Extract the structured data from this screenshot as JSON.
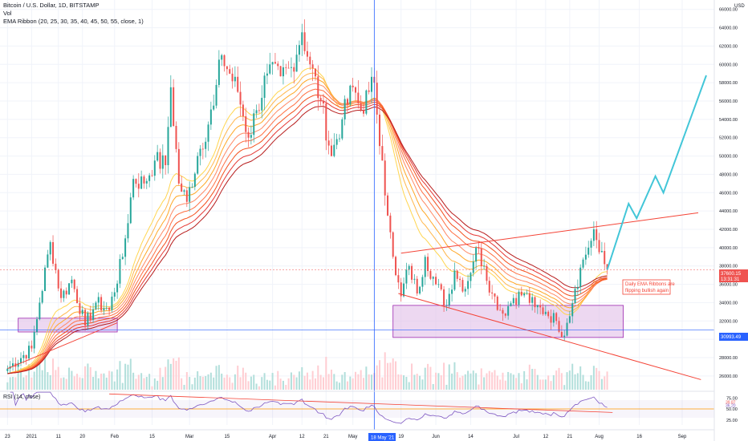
{
  "header": {
    "symbol_line": "Bitcoin / U.S. Dollar, 1D, BITSTAMP",
    "volume_label": "Vol",
    "ema_label": "EMA Ribbon (20, 25, 30, 35, 40, 45, 50, 55, close, 1)",
    "currency": "USD"
  },
  "rsi": {
    "label": "RSI (14, close)",
    "ticks": [
      "75.00",
      "50.00",
      "25.00"
    ],
    "badges": [
      "39.87",
      "36.20"
    ]
  },
  "colors": {
    "up": "#26a69a",
    "down": "#ef5350",
    "projection": "#42c6d8",
    "trendline": "#f44336",
    "zone_fill": "#e1bee7",
    "zone_stroke": "#9c27b0",
    "rsi_line": "#7e57c2",
    "crosshair": "#2962ff"
  },
  "annotations": {
    "ribbon_note_line1": "Daily EMA Ribbons are",
    "ribbon_note_line2": "flipping bullish again",
    "price_badge_top": "37600.15",
    "price_badge_sub": "13:31:31",
    "price_badge_low": "30993.49",
    "crosshair_date": "18 May '21"
  },
  "chart_data": {
    "type": "candlestick",
    "title": "Bitcoin / U.S. Dollar, 1D, BITSTAMP",
    "ylabel": "USD",
    "ylim": [
      24500,
      66500
    ],
    "y_ticks": [
      26000,
      28000,
      30000,
      32000,
      34000,
      36000,
      38000,
      40000,
      42000,
      44000,
      46000,
      48000,
      50000,
      52000,
      54000,
      56000,
      58000,
      60000,
      62000,
      64000,
      66000
    ],
    "x_ticks": [
      {
        "label": "23",
        "day": 0
      },
      {
        "label": "2021",
        "day": 9
      },
      {
        "label": "11",
        "day": 19
      },
      {
        "label": "20",
        "day": 28
      },
      {
        "label": "Feb",
        "day": 40
      },
      {
        "label": "15",
        "day": 54
      },
      {
        "label": "Mar",
        "day": 68
      },
      {
        "label": "15",
        "day": 82
      },
      {
        "label": "Apr",
        "day": 99
      },
      {
        "label": "12",
        "day": 110
      },
      {
        "label": "21",
        "day": 119
      },
      {
        "label": "May",
        "day": 129
      },
      {
        "label": "19",
        "day": 147
      },
      {
        "label": "Jun",
        "day": 160
      },
      {
        "label": "14",
        "day": 173
      },
      {
        "label": "Jul",
        "day": 190
      },
      {
        "label": "12",
        "day": 201
      },
      {
        "label": "21",
        "day": 210
      },
      {
        "label": "Aug",
        "day": 221
      },
      {
        "label": "16",
        "day": 236
      },
      {
        "label": "Sep",
        "day": 252
      }
    ],
    "xlim": [
      0,
      262
    ],
    "last_price": 37600.15,
    "key_points": [
      {
        "day": 0,
        "close": 26800
      },
      {
        "day": 9,
        "close": 29000
      },
      {
        "day": 12,
        "close": 34000
      },
      {
        "day": 16,
        "close": 40600
      },
      {
        "day": 20,
        "close": 34500
      },
      {
        "day": 24,
        "close": 36500
      },
      {
        "day": 29,
        "close": 31500
      },
      {
        "day": 33,
        "close": 34000
      },
      {
        "day": 38,
        "close": 33200
      },
      {
        "day": 43,
        "close": 39000
      },
      {
        "day": 47,
        "close": 47500
      },
      {
        "day": 51,
        "close": 47000
      },
      {
        "day": 55,
        "close": 49500
      },
      {
        "day": 59,
        "close": 49000
      },
      {
        "day": 61,
        "close": 57500
      },
      {
        "day": 64,
        "close": 47000
      },
      {
        "day": 67,
        "close": 45000
      },
      {
        "day": 71,
        "close": 50000
      },
      {
        "day": 77,
        "close": 55500
      },
      {
        "day": 80,
        "close": 61000
      },
      {
        "day": 86,
        "close": 57000
      },
      {
        "day": 90,
        "close": 52000
      },
      {
        "day": 93,
        "close": 55000
      },
      {
        "day": 97,
        "close": 59000
      },
      {
        "day": 102,
        "close": 58700
      },
      {
        "day": 106,
        "close": 59700
      },
      {
        "day": 110,
        "close": 63500
      },
      {
        "day": 113,
        "close": 60000
      },
      {
        "day": 117,
        "close": 56000
      },
      {
        "day": 121,
        "close": 50000
      },
      {
        "day": 125,
        "close": 54000
      },
      {
        "day": 129,
        "close": 57500
      },
      {
        "day": 132,
        "close": 55000
      },
      {
        "day": 135,
        "close": 57000
      },
      {
        "day": 137,
        "close": 58000
      },
      {
        "day": 140,
        "close": 49500
      },
      {
        "day": 142,
        "close": 43500
      },
      {
        "day": 144,
        "close": 39000
      },
      {
        "day": 145,
        "close": 37000
      },
      {
        "day": 147,
        "close": 34700
      },
      {
        "day": 150,
        "close": 38000
      },
      {
        "day": 153,
        "close": 35000
      },
      {
        "day": 156,
        "close": 39000
      },
      {
        "day": 160,
        "close": 36000
      },
      {
        "day": 164,
        "close": 33700
      },
      {
        "day": 167,
        "close": 37500
      },
      {
        "day": 171,
        "close": 35500
      },
      {
        "day": 175,
        "close": 40000
      },
      {
        "day": 178,
        "close": 38000
      },
      {
        "day": 181,
        "close": 35000
      },
      {
        "day": 185,
        "close": 32800
      },
      {
        "day": 189,
        "close": 34500
      },
      {
        "day": 193,
        "close": 35000
      },
      {
        "day": 197,
        "close": 33500
      },
      {
        "day": 201,
        "close": 33000
      },
      {
        "day": 205,
        "close": 32000
      },
      {
        "day": 208,
        "close": 30400
      },
      {
        "day": 209,
        "close": 31800
      },
      {
        "day": 212,
        "close": 35500
      },
      {
        "day": 215,
        "close": 38700
      },
      {
        "day": 217,
        "close": 40000
      },
      {
        "day": 219,
        "close": 42000
      },
      {
        "day": 221,
        "close": 39500
      },
      {
        "day": 223,
        "close": 38200
      },
      {
        "day": 224,
        "close": 37600
      }
    ],
    "projection": [
      {
        "day": 224,
        "price": 37600
      },
      {
        "day": 232,
        "price": 44800
      },
      {
        "day": 235,
        "price": 43200
      },
      {
        "day": 242,
        "price": 47800
      },
      {
        "day": 245,
        "price": 46000
      },
      {
        "day": 261,
        "price": 58800
      }
    ],
    "upper_trendline": [
      {
        "day": 147,
        "price": 39400
      },
      {
        "day": 258,
        "price": 43800
      }
    ],
    "lower_trendline": [
      {
        "day": 146,
        "price": 35000
      },
      {
        "day": 259,
        "price": 25600
      }
    ],
    "left_trendline": [
      {
        "day": 0,
        "price": 26800
      },
      {
        "day": 41,
        "price": 31800
      }
    ],
    "zones": [
      {
        "day_from": 4,
        "day_to": 41,
        "price_low": 30800,
        "price_high": 32300
      },
      {
        "day_from": 144,
        "day_to": 230,
        "price_low": 30200,
        "price_high": 33700
      }
    ],
    "ema_periods": [
      20,
      25,
      30,
      35,
      40,
      45,
      50,
      55
    ]
  }
}
